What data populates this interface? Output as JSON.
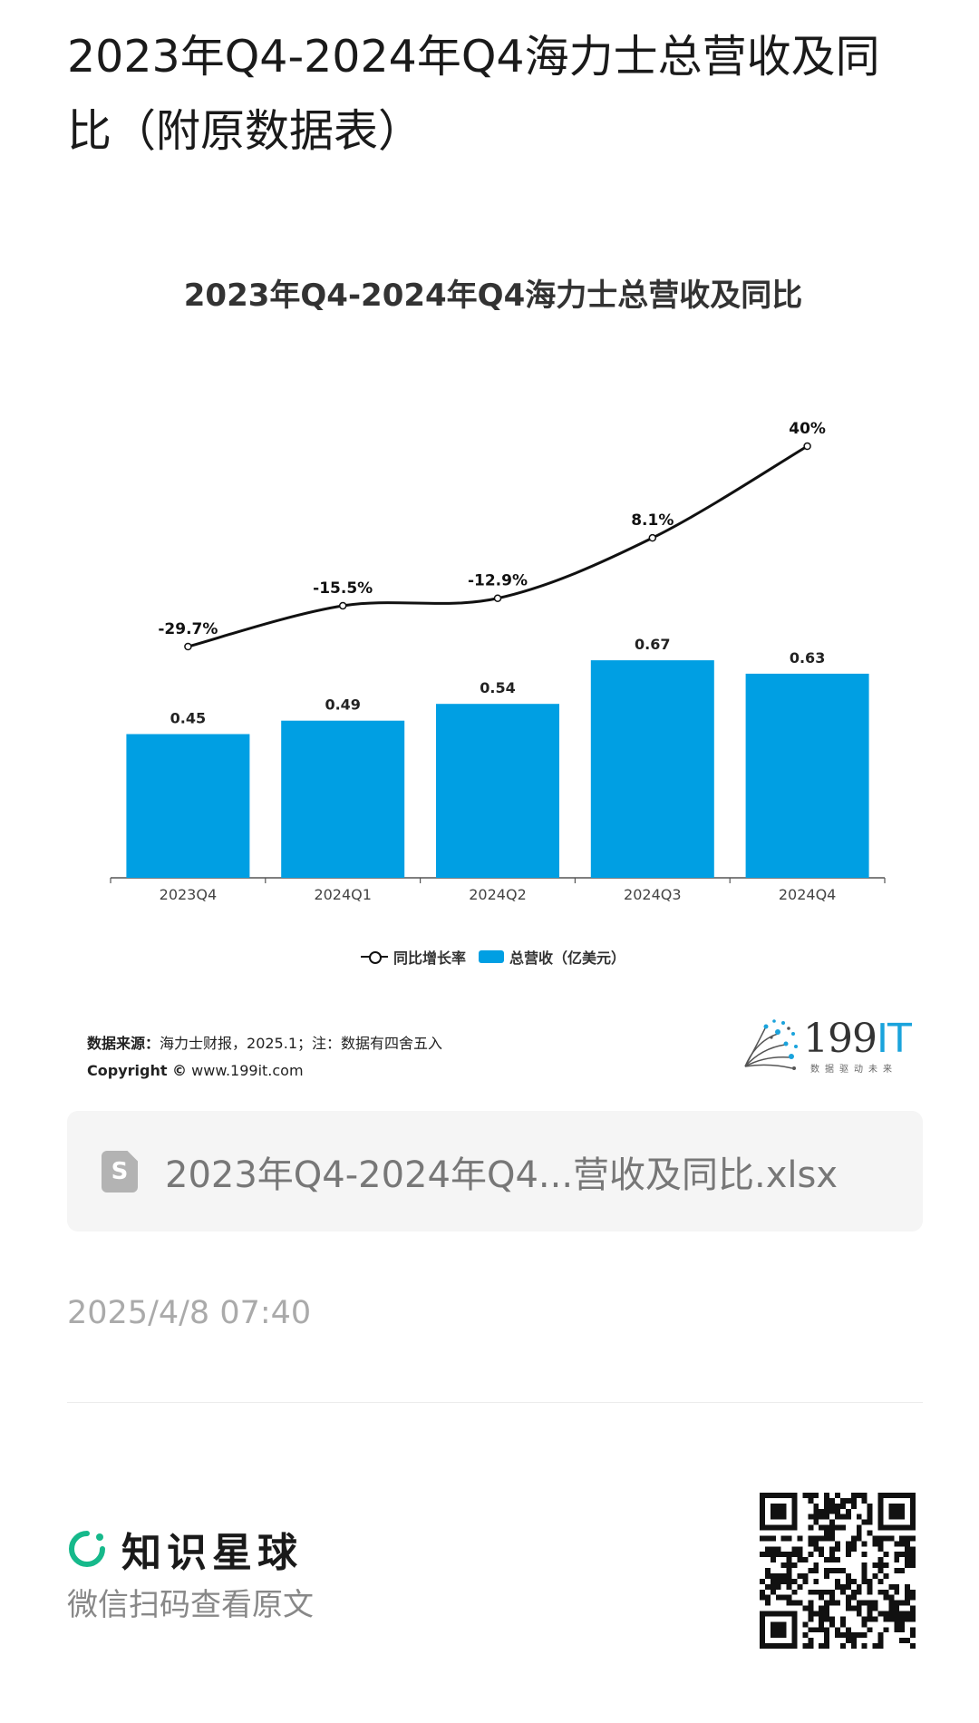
{
  "page": {
    "title": "2023年Q4-2024年Q4海力士总营收及同比（附原数据表）"
  },
  "chart_data": {
    "type": "bar",
    "title": "2023年Q4-2024年Q4海力士总营收及同比",
    "categories": [
      "2023Q4",
      "2024Q1",
      "2024Q2",
      "2024Q3",
      "2024Q4"
    ],
    "series": [
      {
        "name": "总营收（亿美元）",
        "type": "bar",
        "values": [
          0.45,
          0.49,
          0.54,
          0.67,
          0.63
        ],
        "labels": [
          "0.45",
          "0.49",
          "0.54",
          "0.67",
          "0.63"
        ],
        "color": "#009fe3"
      },
      {
        "name": "同比增长率",
        "type": "line",
        "values": [
          -29.7,
          -15.5,
          -12.9,
          8.1,
          40
        ],
        "labels": [
          "-29.7%",
          "-15.5%",
          "-12.9%",
          "8.1%",
          "40%"
        ],
        "color": "#111111"
      }
    ],
    "legend": "bottom-center",
    "grid": false
  },
  "legend": {
    "line_label": "同比增长率",
    "bar_label": "总营收（亿美元）"
  },
  "source": {
    "label": "数据来源：",
    "text": "海力士财报，2025.1；注：数据有四舍五入",
    "copyright_label": "Copyright ©",
    "copyright_url": "www.199it.com"
  },
  "logo": {
    "text_main": "199",
    "text_accent": "IT",
    "tagline": "数据驱动未来",
    "accent_color": "#1aa3dc"
  },
  "file": {
    "icon": "spreadsheet-file-icon",
    "icon_letter": "S",
    "name": "2023年Q4-2024年Q4...营收及同比.xlsx"
  },
  "meta": {
    "date": "2025/4/8 07:40"
  },
  "footer": {
    "brand_name": "知识星球",
    "brand_color": "#16b98b",
    "scan_hint": "微信扫码查看原文",
    "qr_icon": "qr-code-icon"
  }
}
